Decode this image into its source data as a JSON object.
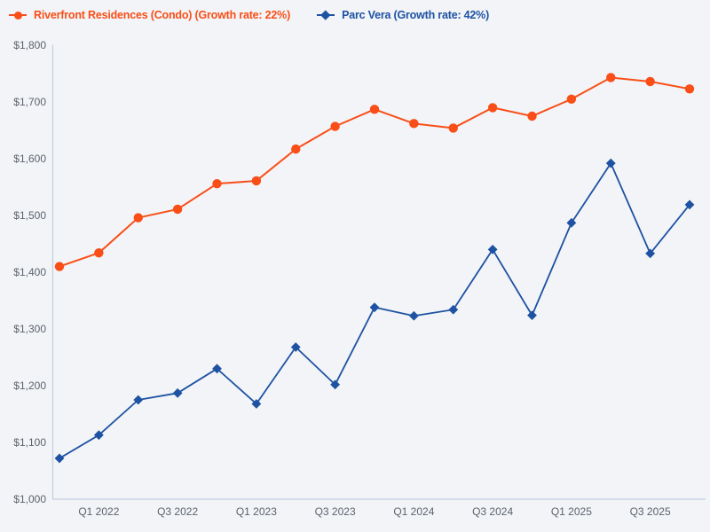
{
  "colors": {
    "background": "#f2f4f7",
    "axis_line": "#c3cedf",
    "tick_text": "#5d636d",
    "series_orange": "#f94e17",
    "series_blue": "#1e52a2"
  },
  "legend": {
    "position": "top-left",
    "items": [
      {
        "label": "Riverfront Residences (Condo) (Growth rate: 22%)",
        "marker": "circle",
        "color": "#f94e17"
      },
      {
        "label": "Parc Vera (Growth rate: 42%)",
        "marker": "diamond",
        "color": "#1e52a2"
      }
    ]
  },
  "chart_data": {
    "type": "line",
    "title": "",
    "xlabel": "",
    "ylabel": "",
    "grid": false,
    "legend_position": "top-left",
    "categories": [
      "Q4 2021",
      "Q1 2022",
      "Q2 2022",
      "Q3 2022",
      "Q4 2022",
      "Q1 2023",
      "Q2 2023",
      "Q3 2023",
      "Q4 2023",
      "Q1 2024",
      "Q2 2024",
      "Q3 2024",
      "Q4 2024",
      "Q1 2025",
      "Q2 2025",
      "Q3 2025",
      "Q4 2025"
    ],
    "x_tick_labels": [
      "Q1 2022",
      "Q3 2022",
      "Q1 2023",
      "Q3 2023",
      "Q1 2024",
      "Q3 2024",
      "Q1 2025",
      "Q3 2025"
    ],
    "x_tick_indices": [
      1,
      3,
      5,
      7,
      9,
      11,
      13,
      15
    ],
    "ylim": [
      1000,
      1800
    ],
    "y_tick_step": 100,
    "y_tick_labels": [
      "$1,000",
      "$1,100",
      "$1,200",
      "$1,300",
      "$1,400",
      "$1,500",
      "$1,600",
      "$1,700",
      "$1,800"
    ],
    "series": [
      {
        "name": "Riverfront Residences (Condo) (Growth rate: 22%)",
        "growth_rate": "22%",
        "marker": "circle",
        "color": "#f94e17",
        "values": [
          1410,
          1434,
          1496,
          1511,
          1556,
          1561,
          1617,
          1657,
          1687,
          1662,
          1654,
          1690,
          1675,
          1705,
          1743,
          1736,
          1723
        ]
      },
      {
        "name": "Parc Vera (Growth rate: 42%)",
        "growth_rate": "42%",
        "marker": "diamond",
        "color": "#1e52a2",
        "values": [
          1072,
          1113,
          1175,
          1187,
          1230,
          1168,
          1268,
          1202,
          1338,
          1323,
          1334,
          1440,
          1324,
          1487,
          1592,
          1433,
          1519
        ]
      }
    ]
  }
}
